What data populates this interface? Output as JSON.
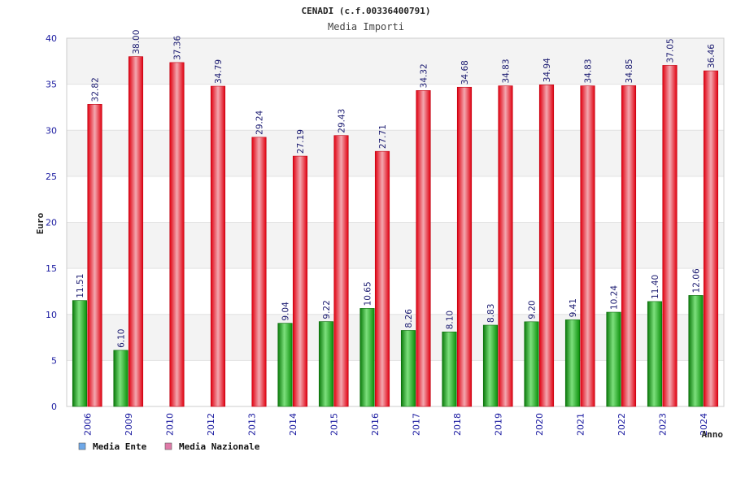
{
  "chart_data": {
    "type": "bar",
    "title": "CENADI (c.f.00336400791)",
    "subtitle": "Media Importi",
    "xlabel": "Anno",
    "ylabel": "Euro",
    "ylim": [
      0,
      40
    ],
    "yticks": [
      "0",
      "5",
      "10",
      "15",
      "20",
      "25",
      "30",
      "35",
      "40"
    ],
    "grid": true,
    "legend_position": "bottom-left",
    "categories": [
      "2006",
      "2009",
      "2010",
      "2012",
      "2013",
      "2014",
      "2015",
      "2016",
      "2017",
      "2018",
      "2019",
      "2020",
      "2021",
      "2022",
      "2023",
      "2024"
    ],
    "series": [
      {
        "name": "Media Ente",
        "legend_color": "#6fa8e8",
        "color": "#11aa11",
        "values": [
          11.51,
          6.1,
          null,
          null,
          null,
          9.04,
          9.22,
          10.65,
          8.26,
          8.1,
          8.83,
          9.2,
          9.41,
          10.24,
          11.4,
          12.06
        ],
        "labels": [
          "11.51",
          "6.10",
          "",
          "",
          "",
          "9.04",
          "9.22",
          "10.65",
          "8.26",
          "8.10",
          "8.83",
          "9.20",
          "9.41",
          "10.24",
          "11.40",
          "12.06"
        ]
      },
      {
        "name": "Media Nazionale",
        "legend_color": "#e07aa8",
        "color": "#ee1122",
        "values": [
          32.82,
          38.0,
          37.36,
          34.79,
          29.24,
          27.19,
          29.43,
          27.71,
          34.32,
          34.68,
          34.83,
          34.94,
          34.83,
          34.85,
          37.05,
          36.46
        ],
        "labels": [
          "32.82",
          "38.00",
          "37.36",
          "34.79",
          "29.24",
          "27.19",
          "29.43",
          "27.71",
          "34.32",
          "34.68",
          "34.83",
          "34.94",
          "34.83",
          "34.85",
          "37.05",
          "36.46"
        ]
      }
    ]
  }
}
